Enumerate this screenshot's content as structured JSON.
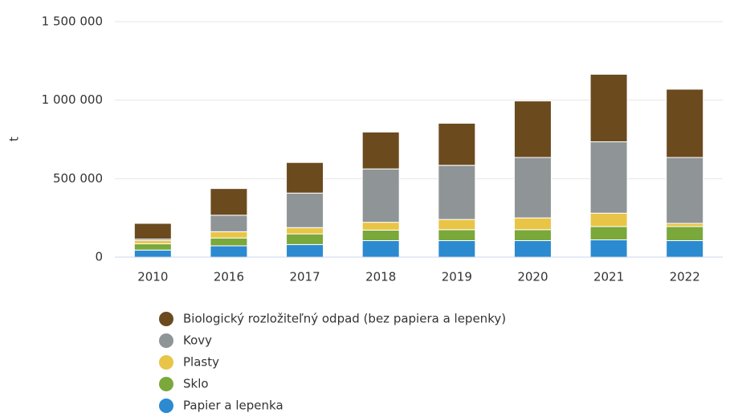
{
  "chart_data": {
    "type": "stacked_bar",
    "y_label": "t",
    "categories": [
      "2010",
      "2016",
      "2017",
      "2018",
      "2019",
      "2020",
      "2021",
      "2022"
    ],
    "series": [
      {
        "name": "Biologický rozložiteľný odpad (bez papiera a lepenky)",
        "color": "#6b4a1e",
        "values": [
          100000,
          170000,
          195000,
          235000,
          268000,
          360000,
          430000,
          435000
        ]
      },
      {
        "name": "Kovy",
        "color": "#8f9496",
        "values": [
          10000,
          105000,
          220000,
          340000,
          345000,
          385000,
          455000,
          420000
        ]
      },
      {
        "name": "Plasty",
        "color": "#e8c547",
        "values": [
          20000,
          40000,
          40000,
          50000,
          65000,
          75000,
          85000,
          20000
        ]
      },
      {
        "name": "Sklo",
        "color": "#7aa83a",
        "values": [
          40000,
          50000,
          68000,
          67000,
          70000,
          70000,
          85000,
          90000
        ]
      },
      {
        "name": "Papier a lepenka",
        "color": "#2c8ad0",
        "values": [
          45000,
          72000,
          80000,
          105000,
          105000,
          105000,
          110000,
          105000
        ]
      }
    ],
    "ylim": [
      0,
      1500000
    ],
    "yticks": [
      0,
      {
        "value": 500000,
        "label": "500 000"
      },
      {
        "value": 1000000,
        "label": "1 000 000"
      },
      {
        "value": 1500000,
        "label": "1 500 000"
      }
    ],
    "grid": true
  }
}
